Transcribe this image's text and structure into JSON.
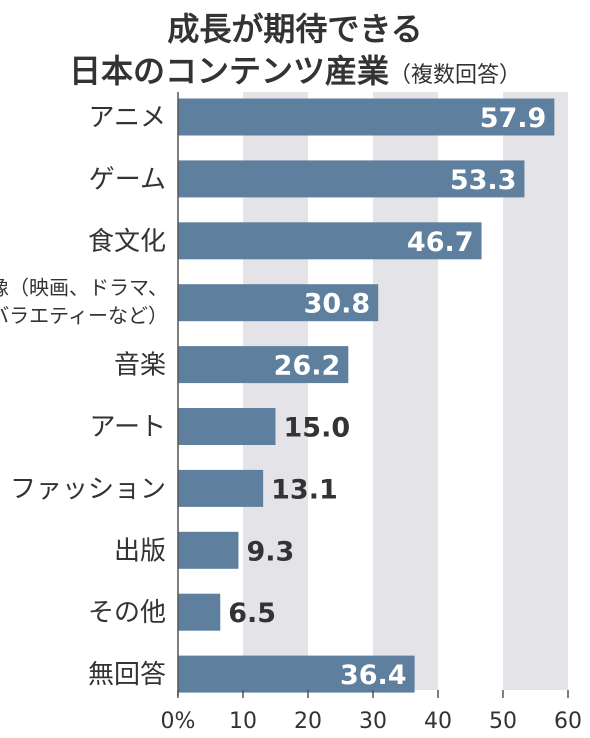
{
  "chart_data": {
    "type": "bar",
    "orientation": "horizontal",
    "title": "成長が期待できる",
    "title_line2": "日本のコンテンツ産業",
    "subtitle": "（複数回答）",
    "categories": [
      [
        "アニメ"
      ],
      [
        "ゲーム"
      ],
      [
        "食文化"
      ],
      [
        "映像（映画、ドラマ、",
        "バラエティーなど）"
      ],
      [
        "音楽"
      ],
      [
        "アート"
      ],
      [
        "ファッション"
      ],
      [
        "出版"
      ],
      [
        "その他"
      ],
      [
        "無回答"
      ]
    ],
    "values": [
      57.9,
      53.3,
      46.7,
      30.8,
      26.2,
      15.0,
      13.1,
      9.3,
      6.5,
      36.4
    ],
    "value_labels": [
      "57.9",
      "53.3",
      "46.7",
      "30.8",
      "26.2",
      "15.0",
      "13.1",
      "9.3",
      "6.5",
      "36.4"
    ],
    "xlim": [
      0,
      60
    ],
    "xticks": [
      "0%",
      "10",
      "20",
      "30",
      "40",
      "50",
      "60"
    ],
    "bar_color": "#5f7f9f",
    "band_color": "#e4e4e8",
    "text_color": "#333333"
  }
}
